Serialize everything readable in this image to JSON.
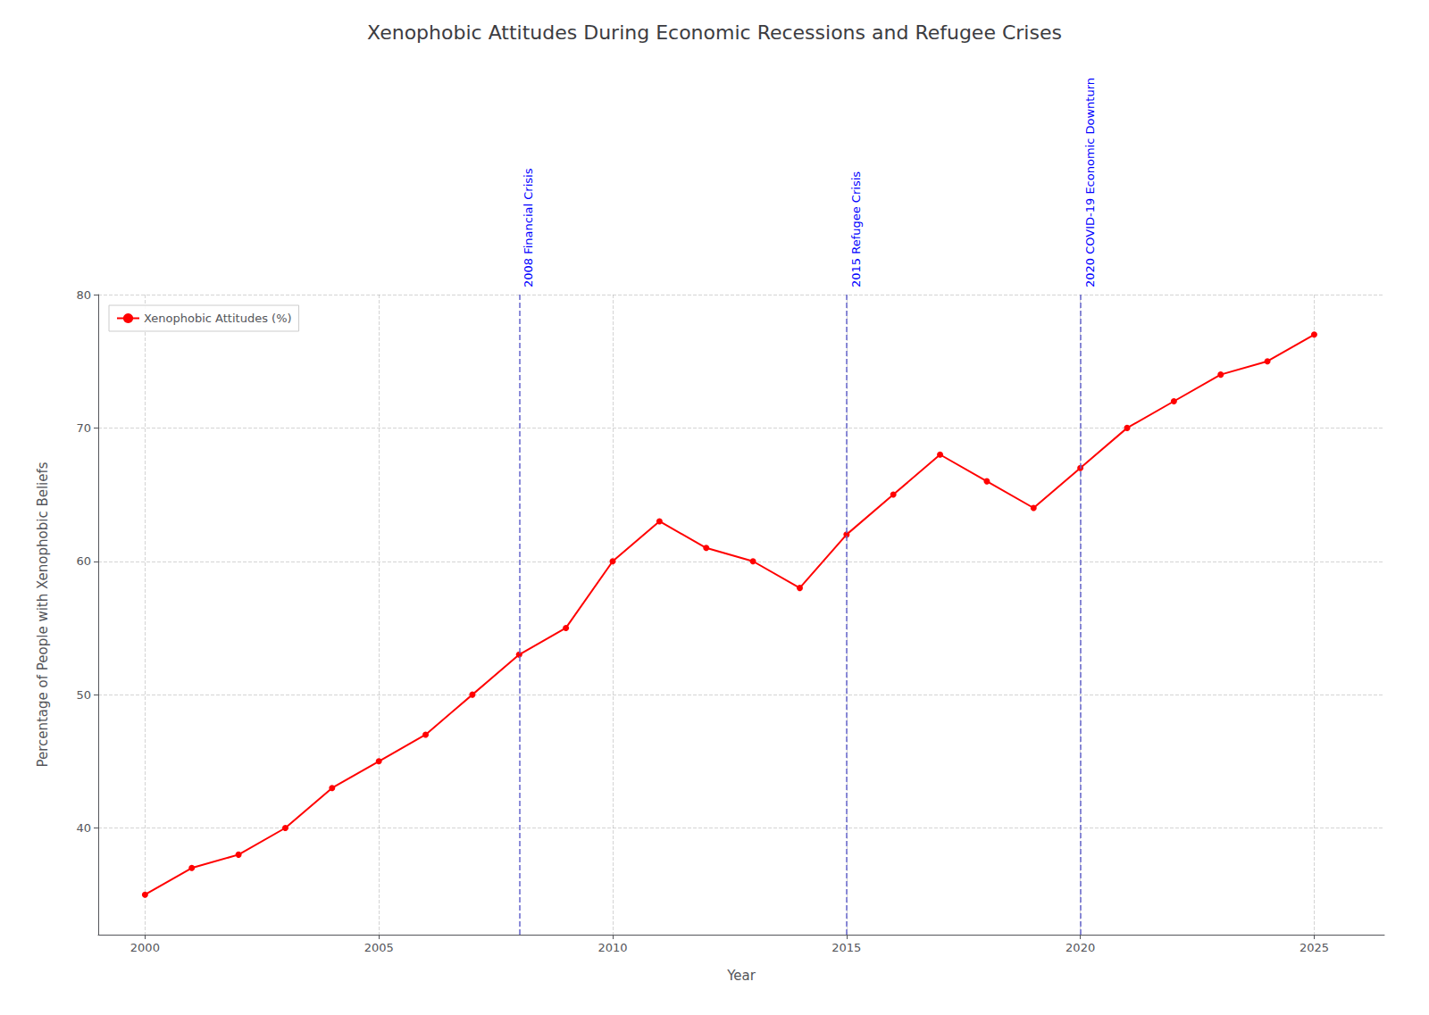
{
  "chart_data": {
    "type": "line",
    "title": "Xenophobic Attitudes During Economic Recessions and Refugee Crises",
    "xlabel": "Year",
    "ylabel": "Percentage of People with Xenophobic Beliefs",
    "x": [
      2000,
      2001,
      2002,
      2003,
      2004,
      2005,
      2006,
      2007,
      2008,
      2009,
      2010,
      2011,
      2012,
      2013,
      2014,
      2015,
      2016,
      2017,
      2018,
      2019,
      2020,
      2021,
      2022,
      2023,
      2024,
      2025
    ],
    "series": [
      {
        "name": "Xenophobic Attitudes (%)",
        "color": "red",
        "marker": "o",
        "values": [
          35,
          37,
          38,
          40,
          43,
          45,
          47,
          50,
          53,
          55,
          60,
          63,
          61,
          60,
          58,
          62,
          65,
          68,
          66,
          64,
          67,
          70,
          72,
          74,
          75,
          77
        ]
      }
    ],
    "annotations": [
      {
        "x": 2008,
        "text": "2008 Financial Crisis"
      },
      {
        "x": 2015,
        "text": "2015 Refugee Crisis"
      },
      {
        "x": 2020,
        "text": "2020 COVID-19 Economic Downturn"
      }
    ],
    "xlim": [
      1999,
      2026.5
    ],
    "ylim": [
      32,
      80
    ],
    "xticks": [
      2000,
      2005,
      2010,
      2015,
      2020,
      2025
    ],
    "yticks": [
      40,
      50,
      60,
      70,
      80
    ],
    "grid": true,
    "legend": "upper left"
  }
}
